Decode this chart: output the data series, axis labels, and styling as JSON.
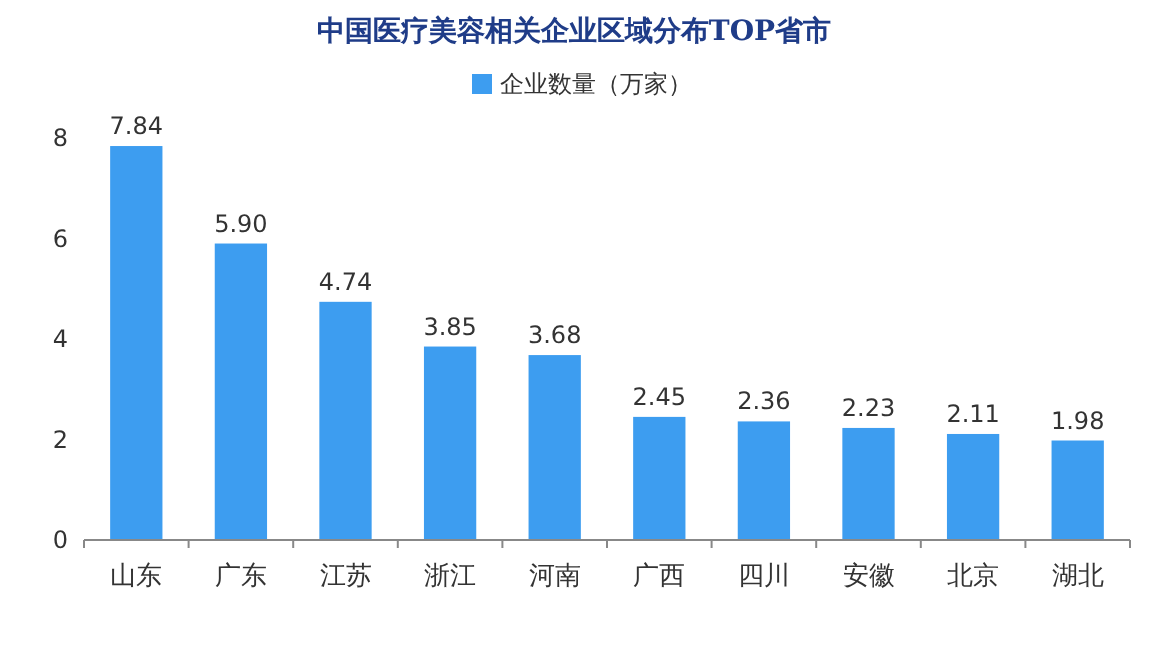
{
  "chart_data": {
    "type": "bar",
    "title": "中国医疗美容相关企业区域分布TOP省市",
    "categories": [
      "山东",
      "广东",
      "江苏",
      "浙江",
      "河南",
      "广西",
      "四川",
      "安徽",
      "北京",
      "湖北"
    ],
    "series": [
      {
        "name": "企业数量（万家）",
        "color": "#3d9df0",
        "values": [
          7.84,
          5.9,
          4.74,
          3.85,
          3.68,
          2.45,
          2.36,
          2.23,
          2.11,
          1.98
        ]
      }
    ],
    "value_labels": [
      "7.84",
      "5.90",
      "4.74",
      "3.85",
      "3.68",
      "2.45",
      "2.36",
      "2.23",
      "2.11",
      "1.98"
    ],
    "ylim": [
      0,
      8
    ],
    "yticks": [
      0,
      2,
      4,
      6,
      8
    ],
    "legend": "top",
    "grid": false
  }
}
